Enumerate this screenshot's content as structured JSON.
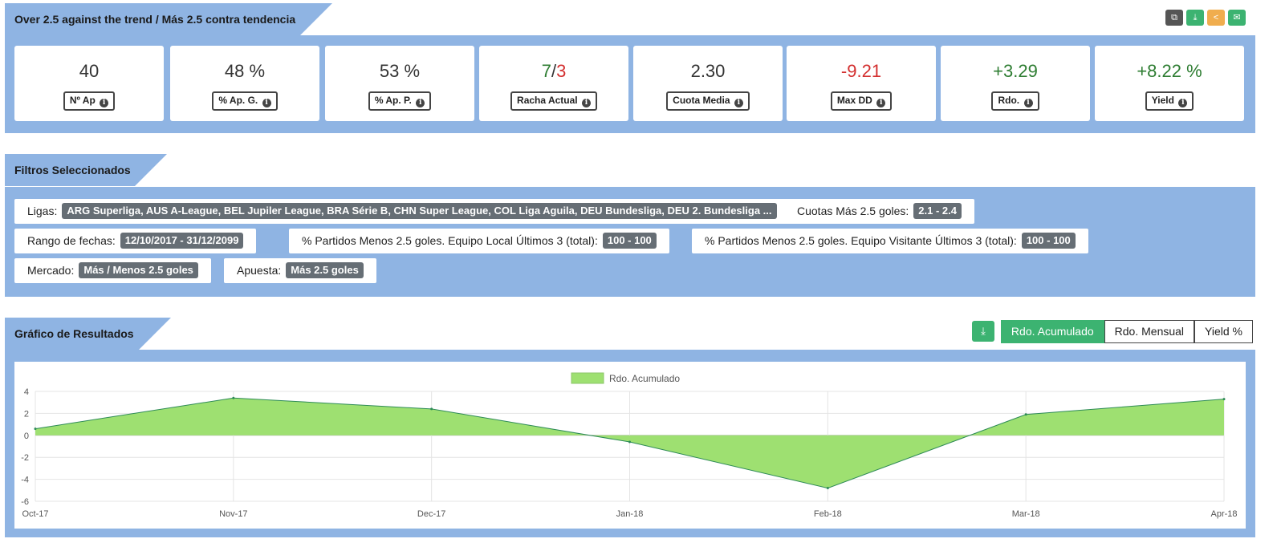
{
  "header": {
    "title": "Over 2.5 against the trend / Más 2.5 contra tendencia",
    "tools": [
      {
        "icon": "copy-icon",
        "color": "#555555"
      },
      {
        "icon": "download-icon",
        "color": "#3cb371"
      },
      {
        "icon": "share-icon",
        "color": "#f0ad4e"
      },
      {
        "icon": "mail-icon",
        "color": "#3cb371"
      }
    ]
  },
  "kpis": [
    {
      "value": "40",
      "label": "Nº Ap"
    },
    {
      "value": "48 %",
      "label": "% Ap. G."
    },
    {
      "value": "53 %",
      "label": "% Ap. P."
    },
    {
      "value_a": "7",
      "slash": "/",
      "value_b": "3",
      "label": "Racha Actual"
    },
    {
      "value": "2.30",
      "label": "Cuota Media"
    },
    {
      "value": "-9.21",
      "label": "Max DD"
    },
    {
      "value": "+3.29",
      "label": "Rdo."
    },
    {
      "value": "+8.22 %",
      "label": "Yield"
    }
  ],
  "filters": {
    "title": "Filtros Seleccionados",
    "ligas": {
      "label": "Ligas:",
      "value": "ARG Superliga, AUS A-League, BEL Jupiler League, BRA Série B, CHN Super League, COL Liga Aguila, DEU Bundesliga, DEU 2. Bundesliga ..."
    },
    "cuotas": {
      "label": "Cuotas Más 2.5 goles:",
      "value": "2.1 - 2.4"
    },
    "fechas": {
      "label": "Rango de fechas:",
      "value": "12/10/2017 - 31/12/2099"
    },
    "local": {
      "label": "% Partidos Menos 2.5 goles. Equipo Local Últimos 3 (total):",
      "value": "100 - 100"
    },
    "visitante": {
      "label": "% Partidos Menos 2.5 goles. Equipo Visitante Últimos 3 (total):",
      "value": "100 - 100"
    },
    "mercado": {
      "label": "Mercado:",
      "value": "Más / Menos 2.5 goles"
    },
    "apuesta": {
      "label": "Apuesta:",
      "value": "Más 2.5 goles"
    }
  },
  "results": {
    "title": "Gráfico de Resultados",
    "tabs": [
      "Rdo. Acumulado",
      "Rdo. Mensual",
      "Yield %"
    ],
    "active_tab": "Rdo. Acumulado"
  },
  "chart_data": {
    "type": "area",
    "x": [
      "Oct-17",
      "Nov-17",
      "Dec-17",
      "Jan-18",
      "Feb-18",
      "Mar-18",
      "Apr-18"
    ],
    "series": [
      {
        "name": "Rdo. Acumulado",
        "values": [
          0.6,
          3.4,
          2.4,
          -0.6,
          -4.8,
          1.9,
          3.3
        ],
        "color": "#9ee071",
        "line_color": "#2e8b57"
      }
    ],
    "ylim": [
      -6,
      4
    ],
    "yticks": [
      4,
      2,
      0,
      -2,
      -4,
      -6
    ],
    "grid": true,
    "legend": "top-center"
  }
}
